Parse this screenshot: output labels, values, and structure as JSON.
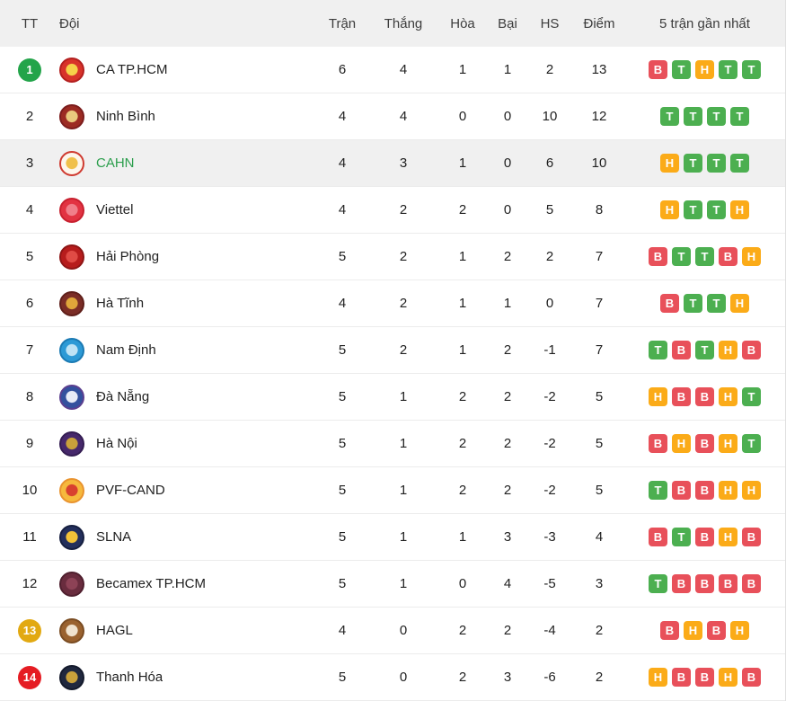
{
  "colors": {
    "form": {
      "T": "#4caf50",
      "H": "#fbab18",
      "B": "#e8505a"
    },
    "pos_badge": {
      "green": "#23a44a",
      "yellow": "#e2a912",
      "red": "#e51c23"
    },
    "highlight_row_bg": "#f0f0f0",
    "highlight_team_text": "#2b9e4c",
    "header_bg": "#f0f0f0"
  },
  "table": {
    "columns": {
      "tt": "TT",
      "team": "Đội",
      "played": "Trận",
      "won": "Thắng",
      "drawn": "Hòa",
      "lost": "Bại",
      "gd": "HS",
      "points": "Điểm",
      "form": "5 trận gần nhất"
    },
    "rows": [
      {
        "pos": "1",
        "pos_badge": "green",
        "team": "CA TP.HCM",
        "team_green": false,
        "highlighted": false,
        "played": "6",
        "won": "4",
        "drawn": "1",
        "lost": "1",
        "gd": "2",
        "points": "13",
        "form": [
          "B",
          "T",
          "H",
          "T",
          "T"
        ],
        "logo": {
          "center": "#f6d14a",
          "main": "#d8332a",
          "ring": "#b31f1f"
        }
      },
      {
        "pos": "2",
        "pos_badge": null,
        "team": "Ninh Bình",
        "team_green": false,
        "highlighted": false,
        "played": "4",
        "won": "4",
        "drawn": "0",
        "lost": "0",
        "gd": "10",
        "points": "12",
        "form": [
          "T",
          "T",
          "T",
          "T"
        ],
        "logo": {
          "center": "#e9c97e",
          "main": "#9c2b23",
          "ring": "#7c1d1d"
        }
      },
      {
        "pos": "3",
        "pos_badge": null,
        "team": "CAHN",
        "team_green": true,
        "highlighted": true,
        "played": "4",
        "won": "3",
        "drawn": "1",
        "lost": "0",
        "gd": "6",
        "points": "10",
        "form": [
          "H",
          "T",
          "T",
          "T"
        ],
        "logo": {
          "center": "#f0c04a",
          "main": "#fdf6ec",
          "ring": "#cf3a30"
        }
      },
      {
        "pos": "4",
        "pos_badge": null,
        "team": "Viettel",
        "team_green": false,
        "highlighted": false,
        "played": "4",
        "won": "2",
        "drawn": "2",
        "lost": "0",
        "gd": "5",
        "points": "8",
        "form": [
          "H",
          "T",
          "T",
          "H"
        ],
        "logo": {
          "center": "#f07f8a",
          "main": "#e23342",
          "ring": "#c8202f"
        }
      },
      {
        "pos": "5",
        "pos_badge": null,
        "team": "Hải Phòng",
        "team_green": false,
        "highlighted": false,
        "played": "5",
        "won": "2",
        "drawn": "1",
        "lost": "2",
        "gd": "2",
        "points": "7",
        "form": [
          "B",
          "T",
          "T",
          "B",
          "H"
        ],
        "logo": {
          "center": "#e04b45",
          "main": "#b71c1c",
          "ring": "#8e1515"
        }
      },
      {
        "pos": "6",
        "pos_badge": null,
        "team": "Hà Tĩnh",
        "team_green": false,
        "highlighted": false,
        "played": "4",
        "won": "2",
        "drawn": "1",
        "lost": "1",
        "gd": "0",
        "points": "7",
        "form": [
          "B",
          "T",
          "T",
          "H"
        ],
        "logo": {
          "center": "#e0a63a",
          "main": "#7b2d26",
          "ring": "#5f1f1a"
        }
      },
      {
        "pos": "7",
        "pos_badge": null,
        "team": "Nam Định",
        "team_green": false,
        "highlighted": false,
        "played": "5",
        "won": "2",
        "drawn": "1",
        "lost": "2",
        "gd": "-1",
        "points": "7",
        "form": [
          "T",
          "B",
          "T",
          "H",
          "B"
        ],
        "logo": {
          "center": "#bfe3f5",
          "main": "#2d9ad6",
          "ring": "#1b7ab3"
        }
      },
      {
        "pos": "8",
        "pos_badge": null,
        "team": "Đà Nẵng",
        "team_green": false,
        "highlighted": false,
        "played": "5",
        "won": "1",
        "drawn": "2",
        "lost": "2",
        "gd": "-2",
        "points": "5",
        "form": [
          "H",
          "B",
          "B",
          "H",
          "T"
        ],
        "logo": {
          "center": "#e8ecf7",
          "main": "#33519e",
          "ring": "#5b3f8f"
        }
      },
      {
        "pos": "9",
        "pos_badge": null,
        "team": "Hà Nội",
        "team_green": false,
        "highlighted": false,
        "played": "5",
        "won": "1",
        "drawn": "2",
        "lost": "2",
        "gd": "-2",
        "points": "5",
        "form": [
          "B",
          "H",
          "B",
          "H",
          "T"
        ],
        "logo": {
          "center": "#c9a13b",
          "main": "#46286b",
          "ring": "#341d52"
        }
      },
      {
        "pos": "10",
        "pos_badge": null,
        "team": "PVF-CAND",
        "team_green": false,
        "highlighted": false,
        "played": "5",
        "won": "1",
        "drawn": "2",
        "lost": "2",
        "gd": "-2",
        "points": "5",
        "form": [
          "T",
          "B",
          "B",
          "H",
          "H"
        ],
        "logo": {
          "center": "#d8412f",
          "main": "#f6b93d",
          "ring": "#e9932e"
        }
      },
      {
        "pos": "11",
        "pos_badge": null,
        "team": "SLNA",
        "team_green": false,
        "highlighted": false,
        "played": "5",
        "won": "1",
        "drawn": "1",
        "lost": "3",
        "gd": "-3",
        "points": "4",
        "form": [
          "B",
          "T",
          "B",
          "H",
          "B"
        ],
        "logo": {
          "center": "#f2c238",
          "main": "#232f5c",
          "ring": "#161f40"
        }
      },
      {
        "pos": "12",
        "pos_badge": null,
        "team": "Becamex TP.HCM",
        "team_green": false,
        "highlighted": false,
        "played": "5",
        "won": "1",
        "drawn": "0",
        "lost": "4",
        "gd": "-5",
        "points": "3",
        "form": [
          "T",
          "B",
          "B",
          "B",
          "B"
        ],
        "logo": {
          "center": "#8d4256",
          "main": "#692c3e",
          "ring": "#4f1f2e"
        }
      },
      {
        "pos": "13",
        "pos_badge": "yellow",
        "team": "HAGL",
        "team_green": false,
        "highlighted": false,
        "played": "4",
        "won": "0",
        "drawn": "2",
        "lost": "2",
        "gd": "-4",
        "points": "2",
        "form": [
          "B",
          "H",
          "B",
          "H"
        ],
        "logo": {
          "center": "#f0e3cf",
          "main": "#9a622f",
          "ring": "#7a4c22"
        }
      },
      {
        "pos": "14",
        "pos_badge": "red",
        "team": "Thanh Hóa",
        "team_green": false,
        "highlighted": false,
        "played": "5",
        "won": "0",
        "drawn": "2",
        "lost": "3",
        "gd": "-6",
        "points": "2",
        "form": [
          "H",
          "B",
          "B",
          "H",
          "B"
        ],
        "logo": {
          "center": "#c9a13b",
          "main": "#20283f",
          "ring": "#141a2c"
        }
      }
    ]
  }
}
